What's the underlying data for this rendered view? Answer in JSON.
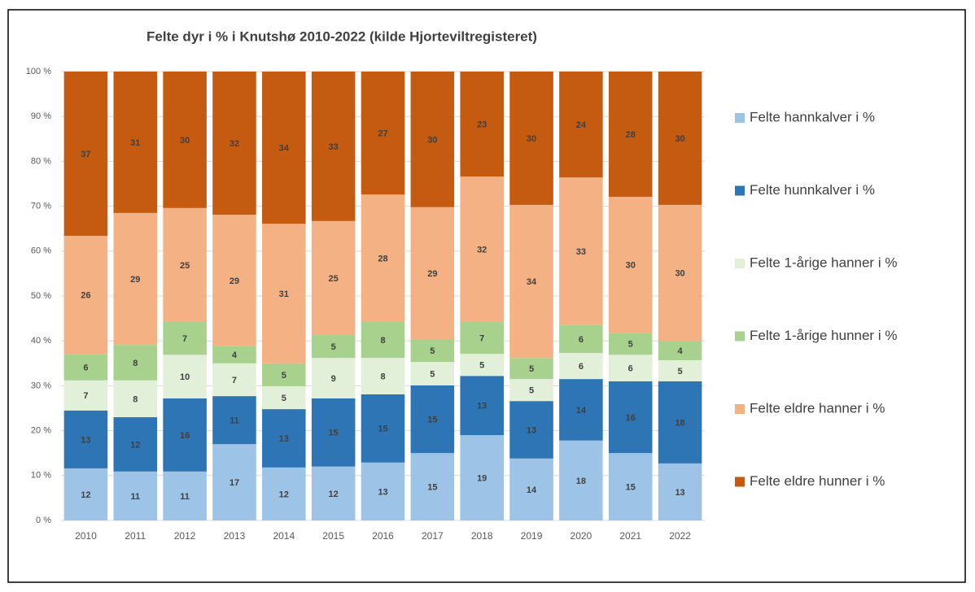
{
  "chart_data": {
    "type": "stacked_bar",
    "title": "Felte dyr i % i Knutshø 2010-2022 (kilde Hjorteviltregisteret)",
    "categories": [
      "2010",
      "2011",
      "2012",
      "2013",
      "2014",
      "2015",
      "2016",
      "2017",
      "2018",
      "2019",
      "2020",
      "2021",
      "2022"
    ],
    "ylim": [
      0,
      100
    ],
    "yticks": [
      {
        "value": 0,
        "label": "0 %"
      },
      {
        "value": 10,
        "label": "10 %"
      },
      {
        "value": 20,
        "label": "20 %"
      },
      {
        "value": 30,
        "label": "30 %"
      },
      {
        "value": 40,
        "label": "40 %"
      },
      {
        "value": 50,
        "label": "50 %"
      },
      {
        "value": 60,
        "label": "60 %"
      },
      {
        "value": 70,
        "label": "70 %"
      },
      {
        "value": 80,
        "label": "80 %"
      },
      {
        "value": 90,
        "label": "90 %"
      },
      {
        "value": 100,
        "label": "100 %"
      }
    ],
    "grid": true,
    "legend": "right",
    "series": [
      {
        "name": "Felte hannkalver i %",
        "color": "#9dc3e6",
        "values": [
          11.6,
          10.9,
          10.9,
          17.0,
          11.8,
          12.0,
          12.9,
          15.0,
          19.0,
          13.8,
          17.8,
          15.0,
          12.7
        ],
        "value_labels": [
          "12",
          "11",
          "11",
          "17",
          "12",
          "12",
          "13",
          "15",
          "19",
          "14",
          "18",
          "15",
          "13"
        ]
      },
      {
        "name": "Felte hunnkalver i %",
        "color": "#2e75b6",
        "values": [
          12.9,
          12.1,
          16.3,
          10.7,
          13.0,
          15.2,
          15.2,
          15.1,
          13.2,
          12.8,
          13.7,
          16.0,
          18.3
        ],
        "value_labels": [
          "13",
          "12",
          "16",
          "11",
          "13",
          "15",
          "15",
          "15",
          "13",
          "13",
          "14",
          "16",
          "18"
        ]
      },
      {
        "name": "Felte 1-årige hanner i %",
        "color": "#e2f0d9",
        "values": [
          6.7,
          8.2,
          9.7,
          7.3,
          5.1,
          9.0,
          8.1,
          5.2,
          4.9,
          4.9,
          5.8,
          5.9,
          4.7
        ],
        "value_labels": [
          "7",
          "8",
          "10",
          "7",
          "5",
          "9",
          "8",
          "5",
          "5",
          "5",
          "6",
          "6",
          "5"
        ]
      },
      {
        "name": "Felte 1-årige hunner i %",
        "color": "#a9d18e",
        "values": [
          5.9,
          7.9,
          7.3,
          3.8,
          5.1,
          5.1,
          8.0,
          5.1,
          7.1,
          4.7,
          6.2,
          4.9,
          4.3
        ],
        "value_labels": [
          "6",
          "8",
          "7",
          "4",
          "5",
          "5",
          "8",
          "5",
          "7",
          "5",
          "6",
          "5",
          "4"
        ]
      },
      {
        "name": "Felte eldre hanner i %",
        "color": "#f4b183",
        "values": [
          26.3,
          29.4,
          25.4,
          29.3,
          31.1,
          25.4,
          28.4,
          29.4,
          32.4,
          34.1,
          32.9,
          30.3,
          30.3
        ],
        "value_labels": [
          "26",
          "29",
          "25",
          "29",
          "31",
          "25",
          "28",
          "29",
          "32",
          "34",
          "33",
          "30",
          "30"
        ]
      },
      {
        "name": "Felte eldre hunner i %",
        "color": "#c55a11",
        "values": [
          36.6,
          31.5,
          30.4,
          31.9,
          33.9,
          33.3,
          27.4,
          30.2,
          23.4,
          29.7,
          23.6,
          27.9,
          29.7
        ],
        "value_labels": [
          "37",
          "31",
          "30",
          "32",
          "34",
          "33",
          "27",
          "30",
          "23",
          "30",
          "24",
          "28",
          "30"
        ]
      }
    ]
  }
}
